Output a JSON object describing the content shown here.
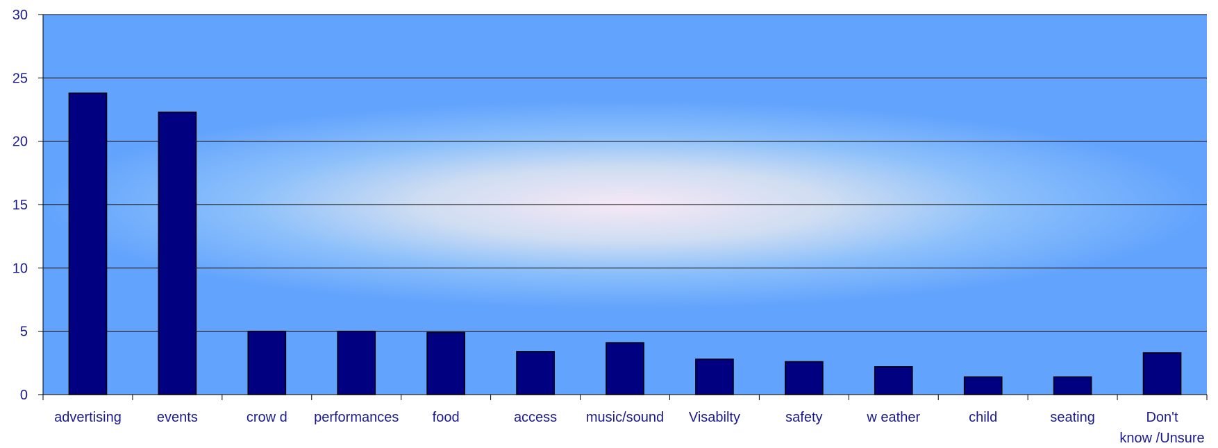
{
  "chart_data": {
    "type": "bar",
    "title": "",
    "xlabel": "",
    "ylabel": "",
    "ylim": [
      0,
      30
    ],
    "yticks": [
      "0",
      "5",
      "10",
      "15",
      "20",
      "25",
      "30"
    ],
    "grid": true,
    "legend": "none",
    "categories": [
      "advertising",
      "events",
      "crow d",
      "performances",
      "food",
      "access",
      "music/sound",
      "Visabilty",
      "safety",
      "w eather",
      "child",
      "seating",
      "Don't know /Unsure"
    ],
    "category_lines": [
      [
        "advertising"
      ],
      [
        "events"
      ],
      [
        "crow d"
      ],
      [
        "performances"
      ],
      [
        "food"
      ],
      [
        "access"
      ],
      [
        "music/sound"
      ],
      [
        "Visabilty"
      ],
      [
        "safety"
      ],
      [
        "w eather"
      ],
      [
        "child"
      ],
      [
        "seating"
      ],
      [
        "Don't",
        "know /Unsure"
      ]
    ],
    "values": [
      23.8,
      22.3,
      5.0,
      5.0,
      4.9,
      3.4,
      4.1,
      2.8,
      2.6,
      2.2,
      1.4,
      1.4,
      3.3
    ]
  },
  "colors": {
    "bar": "#000080",
    "text": "#1a1a8c",
    "grid": "#000000"
  }
}
